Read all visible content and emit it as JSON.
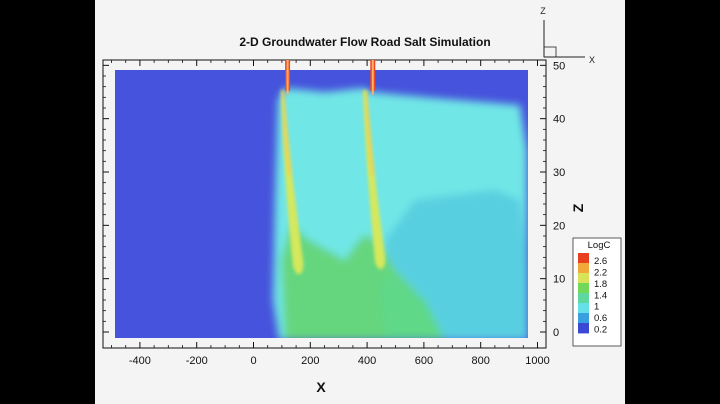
{
  "chart_data": {
    "type": "heatmap",
    "title": "2-D Groundwater Flow Road Salt Simulation",
    "xlabel": "X",
    "ylabel": "Z",
    "xlim": [
      -530,
      1030
    ],
    "ylim": [
      -3,
      51
    ],
    "x_ticks": [
      -400,
      -200,
      0,
      200,
      400,
      600,
      800,
      1000
    ],
    "y_ticks": [
      0,
      10,
      20,
      30,
      40,
      50
    ],
    "grid": false,
    "colorbar": {
      "title": "LogC",
      "placement": "right",
      "levels": [
        2.6,
        2.2,
        1.8,
        1.4,
        1,
        0.6,
        0.2
      ],
      "level_labels": [
        "2.6",
        "2.2",
        "1.8",
        "1.4",
        "1",
        "0.6",
        "0.2"
      ]
    },
    "sources": [
      {
        "x": 120,
        "z_top": 51
      },
      {
        "x": 420,
        "z_top": 51
      }
    ],
    "domain": {
      "x": [
        -500,
        1000
      ],
      "z": [
        0,
        49
      ]
    }
  },
  "triad": {
    "z": "Z",
    "x": "X"
  },
  "colors": {
    "background": "#4653dc",
    "plume_low": "#6ee8e8",
    "plume_mid": "#62d57e",
    "plume_high": "#d8e85a",
    "source": "#e84a2a"
  }
}
